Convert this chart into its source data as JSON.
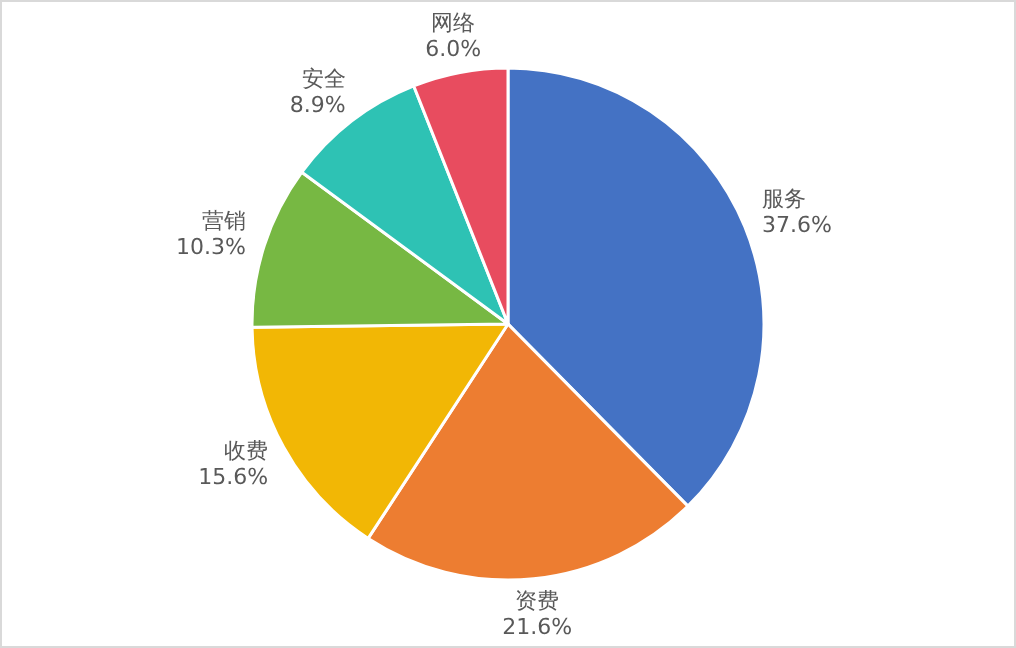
{
  "chart_data": {
    "type": "pie",
    "categories": [
      "服务",
      "资费",
      "收费",
      "营销",
      "安全",
      "网络"
    ],
    "values": [
      37.6,
      21.6,
      15.6,
      10.3,
      8.9,
      6.0
    ],
    "colors": [
      "#4472c4",
      "#ed7d31",
      "#f2b705",
      "#77b843",
      "#2ec2b4",
      "#e84c5f"
    ],
    "value_labels": [
      "37.6%",
      "21.6%",
      "15.6%",
      "10.3%",
      "8.9%",
      "6.0%"
    ]
  }
}
